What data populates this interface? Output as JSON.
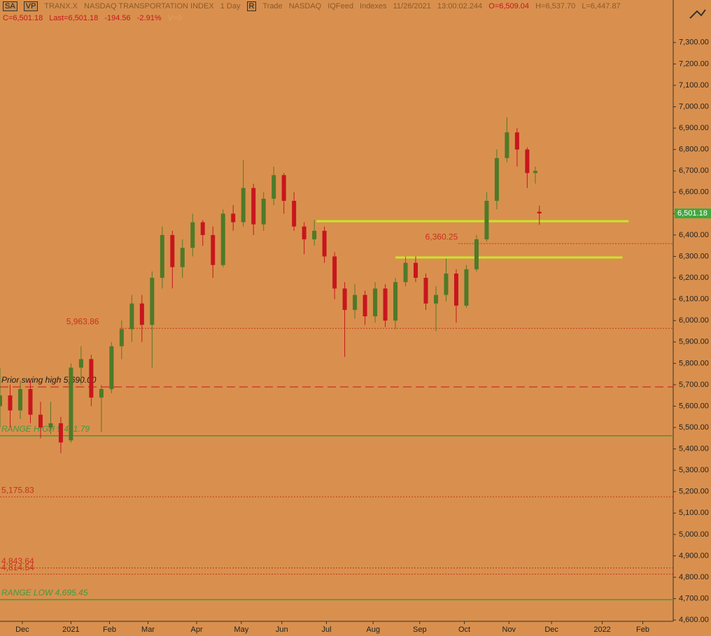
{
  "header": {
    "symbol_buttons": [
      "SA",
      "VP"
    ],
    "symbol": "TRANX.X",
    "name": "NASDAQ TRANSPORTATION INDEX",
    "interval": "1 Day",
    "r_button": "R",
    "items": [
      "Trade",
      "NASDAQ",
      "IQFeed",
      "Indexes"
    ],
    "date": "11/26/2021",
    "time": "13:00:02.244",
    "open": "O=6,509.04",
    "high": "H=6,537.70",
    "low": "L=6,447.87",
    "close": "C=6,501.18",
    "last": "Last=6,501.18",
    "change": "-194.56",
    "change_pct": "-2.91%",
    "volume": "V=0"
  },
  "chart_data": {
    "type": "candlestick",
    "x": [
      0,
      5,
      10,
      15,
      20,
      25,
      30,
      35,
      40,
      45,
      50,
      55,
      60,
      65,
      70,
      75,
      80,
      85,
      90,
      95,
      100,
      105,
      110,
      115,
      120,
      125,
      130,
      135,
      140,
      145,
      150,
      155,
      160,
      165,
      170,
      175,
      180,
      185,
      190,
      195,
      200,
      205,
      210,
      215,
      220,
      225,
      230,
      235,
      240,
      245,
      250,
      255,
      260,
      264,
      266
    ],
    "open": [
      5600,
      5650,
      5580,
      5680,
      5560,
      5500,
      5520,
      5440,
      5780,
      5820,
      5640,
      5680,
      5880,
      5960,
      6080,
      5980,
      6200,
      6400,
      6250,
      6340,
      6460,
      6400,
      6260,
      6500,
      6460,
      6620,
      6450,
      6570,
      6680,
      6560,
      6440,
      6380,
      6420,
      6300,
      6150,
      6050,
      6120,
      6020,
      6150,
      6000,
      6180,
      6270,
      6200,
      6080,
      6120,
      6220,
      6070,
      6240,
      6380,
      6560,
      6760,
      6880,
      6800,
      6690,
      6509.04
    ],
    "high": [
      5780,
      5700,
      5720,
      5720,
      5620,
      5620,
      5550,
      5800,
      5880,
      5840,
      5700,
      5900,
      6000,
      6120,
      6120,
      6230,
      6440,
      6420,
      6380,
      6500,
      6470,
      6440,
      6520,
      6540,
      6750,
      6640,
      6600,
      6720,
      6690,
      6600,
      6460,
      6470,
      6440,
      6320,
      6180,
      6170,
      6140,
      6180,
      6170,
      6200,
      6300,
      6300,
      6220,
      6160,
      6290,
      6240,
      6260,
      6400,
      6600,
      6800,
      6950,
      6900,
      6810,
      6720,
      6537.7
    ],
    "low": [
      5500,
      5500,
      5540,
      5520,
      5450,
      5470,
      5380,
      5430,
      5700,
      5600,
      5480,
      5660,
      5820,
      5900,
      5900,
      5780,
      6150,
      6150,
      6200,
      6300,
      6350,
      6200,
      6250,
      6420,
      6440,
      6400,
      6420,
      6540,
      6500,
      6420,
      6310,
      6350,
      6270,
      6100,
      5830,
      6010,
      5980,
      5990,
      5970,
      5960,
      6160,
      6180,
      6050,
      5950,
      6090,
      5990,
      6060,
      6230,
      6370,
      6520,
      6740,
      6720,
      6620,
      6640,
      6447.87
    ],
    "close": [
      5650,
      5580,
      5680,
      5560,
      5500,
      5520,
      5430,
      5780,
      5820,
      5640,
      5680,
      5880,
      5960,
      6080,
      5980,
      6200,
      6400,
      6250,
      6340,
      6460,
      6400,
      6260,
      6500,
      6460,
      6620,
      6450,
      6570,
      6680,
      6560,
      6440,
      6380,
      6420,
      6300,
      6150,
      6050,
      6120,
      6020,
      6150,
      6000,
      6180,
      6270,
      6200,
      6080,
      6120,
      6220,
      6070,
      6240,
      6380,
      6560,
      6760,
      6880,
      6800,
      6690,
      6700,
      6501.18
    ],
    "up_color": "#4e7a28",
    "down_color": "#c8161d",
    "xlim": [
      0,
      332
    ],
    "ylim": [
      4594,
      7499
    ],
    "xticks": [
      {
        "value": 11,
        "label": "Dec"
      },
      {
        "value": 35,
        "label": "2021"
      },
      {
        "value": 54,
        "label": "Feb"
      },
      {
        "value": 73,
        "label": "Mar"
      },
      {
        "value": 97,
        "label": "Apr"
      },
      {
        "value": 119,
        "label": "May"
      },
      {
        "value": 139,
        "label": "Jun"
      },
      {
        "value": 161,
        "label": "Jul"
      },
      {
        "value": 184,
        "label": "Aug"
      },
      {
        "value": 207,
        "label": "Sep"
      },
      {
        "value": 229,
        "label": "Oct"
      },
      {
        "value": 251,
        "label": "Nov"
      },
      {
        "value": 272,
        "label": "Dec"
      },
      {
        "value": 297,
        "label": "2022"
      },
      {
        "value": 317,
        "label": "Feb"
      }
    ],
    "yticks": [
      {
        "value": 7300,
        "label": "7,300.00"
      },
      {
        "value": 7200,
        "label": "7,200.00"
      },
      {
        "value": 7100,
        "label": "7,100.00"
      },
      {
        "value": 7000,
        "label": "7,000.00"
      },
      {
        "value": 6900,
        "label": "6,900.00"
      },
      {
        "value": 6800,
        "label": "6,800.00"
      },
      {
        "value": 6700,
        "label": "6,700.00"
      },
      {
        "value": 6600,
        "label": "6,600.00"
      },
      {
        "value": 6500,
        "label": "6,500.00"
      },
      {
        "value": 6400,
        "label": "6,400.00"
      },
      {
        "value": 6300,
        "label": "6,300.00"
      },
      {
        "value": 6200,
        "label": "6,200.00"
      },
      {
        "value": 6100,
        "label": "6,100.00"
      },
      {
        "value": 6000,
        "label": "6,000.00"
      },
      {
        "value": 5900,
        "label": "5,900.00"
      },
      {
        "value": 5800,
        "label": "5,800.00"
      },
      {
        "value": 5700,
        "label": "5,700.00"
      },
      {
        "value": 5600,
        "label": "5,600.00"
      },
      {
        "value": 5500,
        "label": "5,500.00"
      },
      {
        "value": 5400,
        "label": "5,400.00"
      },
      {
        "value": 5300,
        "label": "5,300.00"
      },
      {
        "value": 5200,
        "label": "5,200.00"
      },
      {
        "value": 5100,
        "label": "5,100.00"
      },
      {
        "value": 5000,
        "label": "5,000.00"
      },
      {
        "value": 4900,
        "label": "4,900.00"
      },
      {
        "value": 4800,
        "label": "4,800.00"
      },
      {
        "value": 4700,
        "label": "4,700.00"
      },
      {
        "value": 4600,
        "label": "4,600.00"
      }
    ],
    "levels": [
      {
        "value": 6360.25,
        "label": "6,360.25",
        "color": "#c8321d",
        "style": "dotted",
        "from": 226,
        "label_x": 209,
        "italic": false
      },
      {
        "value": 5963.86,
        "label": "5,963.86",
        "color": "#c8321d",
        "style": "dotted",
        "from": 59,
        "label_x": 32,
        "italic": false
      },
      {
        "value": 5690,
        "label": "Prior swing high 5,690.00",
        "color": "#c8161d",
        "label_color": "#1a1a1a",
        "style": "longdash",
        "from": 0,
        "label_x": 0,
        "italic": true
      },
      {
        "value": 5461.79,
        "label": "RANGE HIGH 5,461.79",
        "color": "#3f9a3f",
        "label_color": "#3f9a3f",
        "style": "solid",
        "from": 0,
        "label_x": 0,
        "italic": true
      },
      {
        "value": 5175.83,
        "label": "5,175.83",
        "color": "#c8321d",
        "style": "dotted",
        "from": 0,
        "label_x": 0,
        "italic": false
      },
      {
        "value": 4843.64,
        "label": "4,843.64",
        "color": "#c8321d",
        "style": "dotted",
        "from": 0,
        "label_x": 0,
        "italic": false
      },
      {
        "value": 4814.54,
        "label": "4,814.54",
        "color": "#c8321d",
        "style": "dotted",
        "from": 0,
        "label_x": 0,
        "italic": false
      },
      {
        "value": 4695.45,
        "label": "RANGE LOW 4,695.45",
        "color": "#3f9a3f",
        "label_color": "#3f9a3f",
        "style": "solid",
        "from": 0,
        "label_x": 0,
        "italic": true
      }
    ],
    "zones": [
      {
        "value": 6465,
        "from": 156,
        "to": 310,
        "color": "#c8e62a"
      },
      {
        "value": 6295,
        "from": 195,
        "to": 307,
        "color": "#c8e62a"
      }
    ],
    "last_price": {
      "value": 6501.18,
      "label": "6,501.18",
      "color": "#3fa83f"
    }
  }
}
